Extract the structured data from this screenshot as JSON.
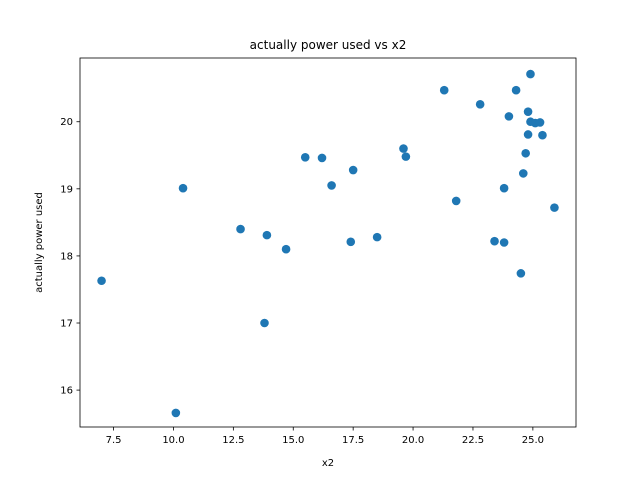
{
  "chart_data": {
    "type": "scatter",
    "title": "actually power used vs x2",
    "xlabel": "x2",
    "ylabel": "actually power used",
    "xlim": [
      6.1,
      26.8
    ],
    "ylim": [
      15.45,
      20.95
    ],
    "xticks": [
      7.5,
      10.0,
      12.5,
      15.0,
      17.5,
      20.0,
      22.5,
      25.0
    ],
    "xtick_labels": [
      "7.5",
      "10.0",
      "12.5",
      "15.0",
      "17.5",
      "20.0",
      "22.5",
      "25.0"
    ],
    "yticks": [
      16,
      17,
      18,
      19,
      20
    ],
    "ytick_labels": [
      "16",
      "17",
      "18",
      "19",
      "20"
    ],
    "grid": false,
    "point_color": "#1f77b4",
    "points": [
      {
        "x": 7.0,
        "y": 17.63
      },
      {
        "x": 10.1,
        "y": 15.66
      },
      {
        "x": 10.4,
        "y": 19.01
      },
      {
        "x": 12.8,
        "y": 18.4
      },
      {
        "x": 13.8,
        "y": 17.0
      },
      {
        "x": 13.9,
        "y": 18.31
      },
      {
        "x": 14.7,
        "y": 18.1
      },
      {
        "x": 15.5,
        "y": 19.47
      },
      {
        "x": 16.2,
        "y": 19.46
      },
      {
        "x": 16.6,
        "y": 19.05
      },
      {
        "x": 17.4,
        "y": 18.21
      },
      {
        "x": 17.5,
        "y": 19.28
      },
      {
        "x": 18.5,
        "y": 18.28
      },
      {
        "x": 19.6,
        "y": 19.6
      },
      {
        "x": 19.7,
        "y": 19.48
      },
      {
        "x": 21.3,
        "y": 20.47
      },
      {
        "x": 21.8,
        "y": 18.82
      },
      {
        "x": 22.8,
        "y": 20.26
      },
      {
        "x": 23.4,
        "y": 18.22
      },
      {
        "x": 23.8,
        "y": 18.2
      },
      {
        "x": 23.8,
        "y": 19.01
      },
      {
        "x": 24.0,
        "y": 20.08
      },
      {
        "x": 24.3,
        "y": 20.47
      },
      {
        "x": 24.5,
        "y": 17.74
      },
      {
        "x": 24.6,
        "y": 19.23
      },
      {
        "x": 24.7,
        "y": 19.53
      },
      {
        "x": 24.8,
        "y": 20.15
      },
      {
        "x": 24.8,
        "y": 19.81
      },
      {
        "x": 24.9,
        "y": 20.71
      },
      {
        "x": 24.9,
        "y": 20.0
      },
      {
        "x": 25.1,
        "y": 19.98
      },
      {
        "x": 25.3,
        "y": 19.99
      },
      {
        "x": 25.4,
        "y": 19.8
      },
      {
        "x": 25.9,
        "y": 18.72
      }
    ]
  }
}
